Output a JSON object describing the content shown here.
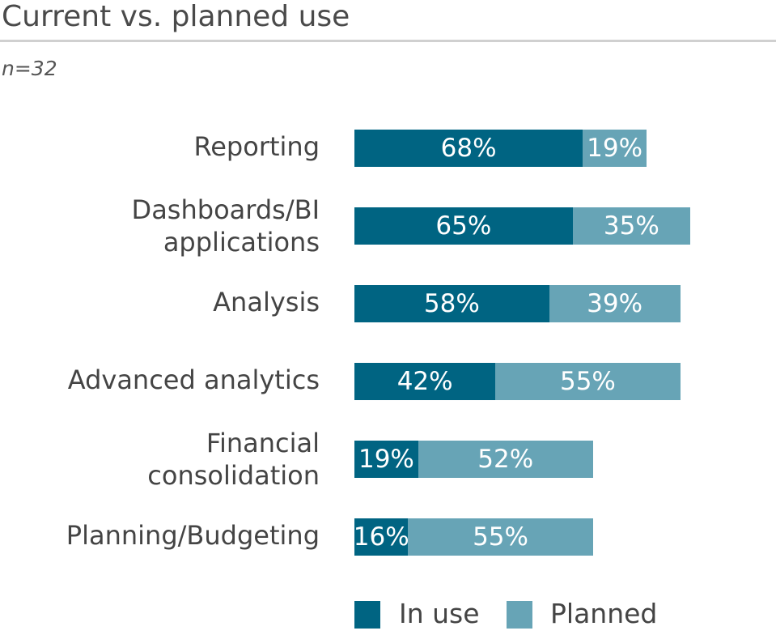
{
  "chart_data": {
    "type": "bar",
    "orientation": "horizontal",
    "stacked": true,
    "title": "Current vs. planned use",
    "subtitle": "n=32",
    "categories": [
      "Reporting",
      "Dashboards/BI applications",
      "Analysis",
      "Advanced analytics",
      "Financial consolidation",
      "Planning/Budgeting"
    ],
    "series": [
      {
        "name": "In use",
        "color": "#006482",
        "values": [
          68,
          65,
          58,
          42,
          19,
          16
        ]
      },
      {
        "name": "Planned",
        "color": "#67a4b6",
        "values": [
          19,
          35,
          39,
          55,
          52,
          55
        ]
      }
    ],
    "legend": [
      "In use",
      "Planned"
    ],
    "legend_position": "bottom",
    "unit": "%",
    "xlim": [
      0,
      100
    ],
    "grid": false
  }
}
